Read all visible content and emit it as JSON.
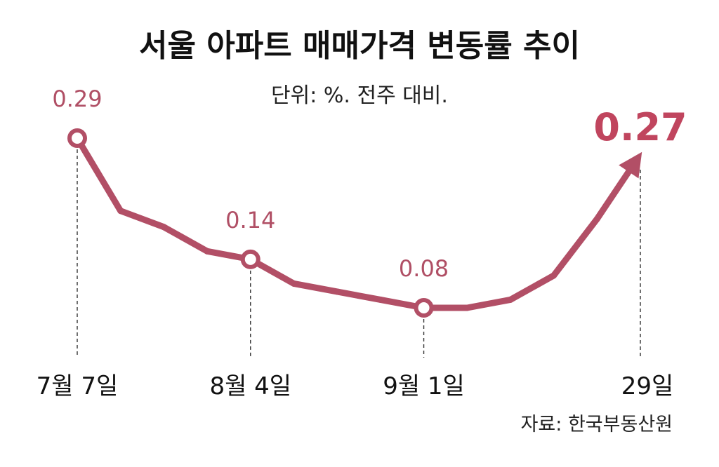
{
  "chart_data": {
    "type": "line",
    "title": "서울 아파트 매매가격 변동률 추이",
    "subtitle": "단위: %. 전주 대비.",
    "source": "자료: 한국부동산원",
    "tick_labels": [
      "7월 7일",
      "8월 4일",
      "9월 1일",
      "29일"
    ],
    "series": [
      {
        "values": [
          0.29,
          0.2,
          0.18,
          0.15,
          0.14,
          0.11,
          0.1,
          0.09,
          0.08,
          0.08,
          0.09,
          0.12,
          0.19,
          0.27
        ]
      }
    ],
    "highlighted": [
      {
        "index": 0,
        "label": "0.29",
        "tick": 0
      },
      {
        "index": 4,
        "label": "0.14",
        "tick": 1
      },
      {
        "index": 8,
        "label": "0.08",
        "tick": 2
      },
      {
        "index": 13,
        "label": "0.27",
        "tick": 3,
        "arrow": true
      }
    ],
    "line_color": "#b24f66",
    "accent_color": "#c0455e"
  }
}
